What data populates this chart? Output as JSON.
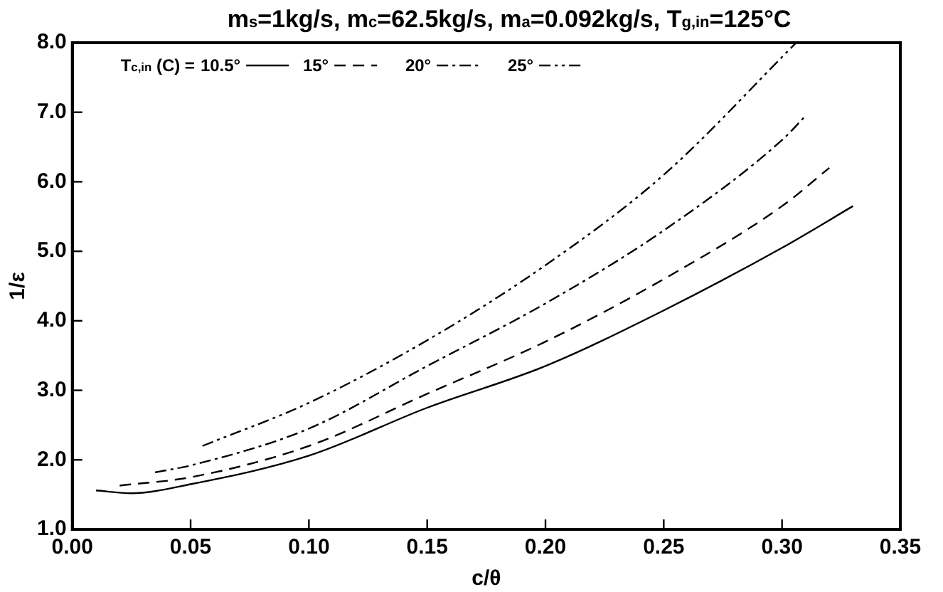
{
  "chart_data": {
    "type": "line",
    "title": "m$_{s}$=1kg/s, m$_{c}$=62.5kg/s, m$_{a}$=0.092kg/s, T$_{g,in}$=125°C",
    "xlabel": "c/θ",
    "ylabel": "1/ε",
    "legend_title": "T$_{c,in}$ (C) =",
    "legend": "top left",
    "grid": false,
    "marker": "none",
    "xlim": [
      0,
      0.35
    ],
    "xticks": [
      {
        "value": 0,
        "label": "0.00"
      },
      {
        "value": 0.05,
        "label": "0.05"
      },
      {
        "value": 0.1,
        "label": "0.10"
      },
      {
        "value": 0.15,
        "label": "0.15"
      },
      {
        "value": 0.2,
        "label": "0.20"
      },
      {
        "value": 0.25,
        "label": "0.25"
      },
      {
        "value": 0.3,
        "label": "0.30"
      },
      {
        "value": 0.35,
        "label": "0.35"
      }
    ],
    "ylim": [
      1,
      8
    ],
    "yticks": [
      {
        "value": 1,
        "label": "1.0"
      },
      {
        "value": 2,
        "label": "2.0"
      },
      {
        "value": 3,
        "label": "3.0"
      },
      {
        "value": 4,
        "label": "4.0"
      },
      {
        "value": 5,
        "label": "5.0"
      },
      {
        "value": 6,
        "label": "6.0"
      },
      {
        "value": 7,
        "label": "7.0"
      },
      {
        "value": 8,
        "label": "8.0"
      }
    ],
    "series": [
      {
        "name": "10.5°",
        "color": "#000000",
        "line_style": "solid",
        "x": [
          0.01,
          0.025,
          0.05,
          0.1,
          0.15,
          0.2,
          0.25,
          0.3,
          0.33
        ],
        "values": [
          1.56,
          1.52,
          1.65,
          2.06,
          2.75,
          3.35,
          4.15,
          5.05,
          5.65
        ]
      },
      {
        "name": "15°",
        "color": "#000000",
        "line_style": "dashed",
        "x": [
          0.02,
          0.05,
          0.1,
          0.15,
          0.2,
          0.25,
          0.3,
          0.32
        ],
        "values": [
          1.63,
          1.75,
          2.2,
          2.95,
          3.7,
          4.6,
          5.65,
          6.2
        ]
      },
      {
        "name": "20°",
        "color": "#000000",
        "line_style": "dashdot",
        "x": [
          0.035,
          0.05,
          0.1,
          0.15,
          0.2,
          0.25,
          0.3,
          0.31
        ],
        "values": [
          1.82,
          1.92,
          2.45,
          3.35,
          4.25,
          5.3,
          6.6,
          6.95
        ]
      },
      {
        "name": "25°",
        "color": "#000000",
        "line_style": "dashdotdot",
        "x": [
          0.055,
          0.1,
          0.15,
          0.2,
          0.25,
          0.306
        ],
        "values": [
          2.2,
          2.82,
          3.72,
          4.8,
          6.1,
          8.0
        ]
      }
    ]
  }
}
